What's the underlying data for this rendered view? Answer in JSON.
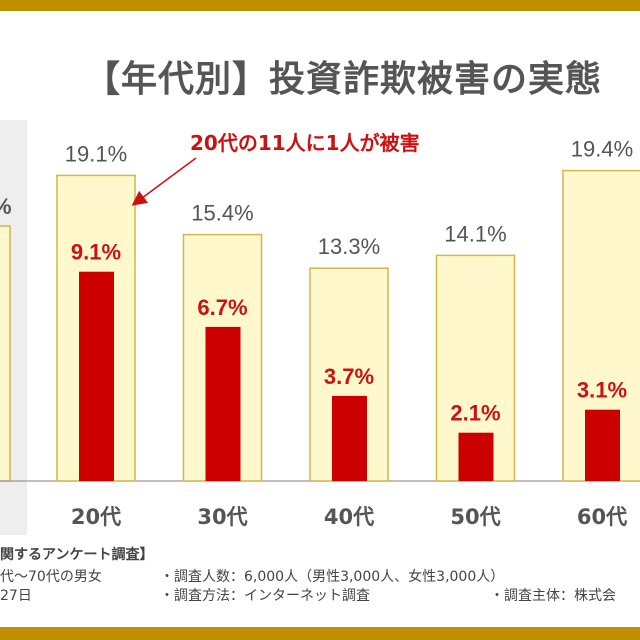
{
  "title": "【年代別】投資詐欺被害の実態",
  "chart_data": {
    "type": "bar",
    "categories": [
      "20代",
      "30代",
      "40代",
      "50代",
      "60代"
    ],
    "series": [
      {
        "values": [
          19.1,
          15.4,
          13.3,
          14.1,
          19.4
        ],
        "labels": [
          "19.1%",
          "15.4%",
          "13.3%",
          "14.1%",
          "19.4%"
        ]
      },
      {
        "values": [
          9.1,
          6.7,
          3.7,
          2.1,
          3.1
        ],
        "labels": [
          "9.1%",
          "6.7%",
          "3.7%",
          "2.1%",
          "3.1%"
        ]
      }
    ],
    "annotation": "20代の11人に1人が被害",
    "colors": {
      "outer_fill": "#fff8cc",
      "outer_stroke": "#d4b64a",
      "inner": "#cc0000",
      "label_outer": "#555555",
      "label_inner": "#cc1111",
      "annotation": "#cc1111"
    }
  },
  "footer": {
    "line1": "関するアンケート調査】",
    "line2a": "代～70代の男女",
    "line2b": "・調査人数：6,000人（男性3,000人、女性3,000人）",
    "line3a": "27日",
    "line3b": "・調査方法：インターネット調査",
    "line3c": "・調査主体：株式会"
  },
  "colors": {
    "frame": "#c09000"
  }
}
